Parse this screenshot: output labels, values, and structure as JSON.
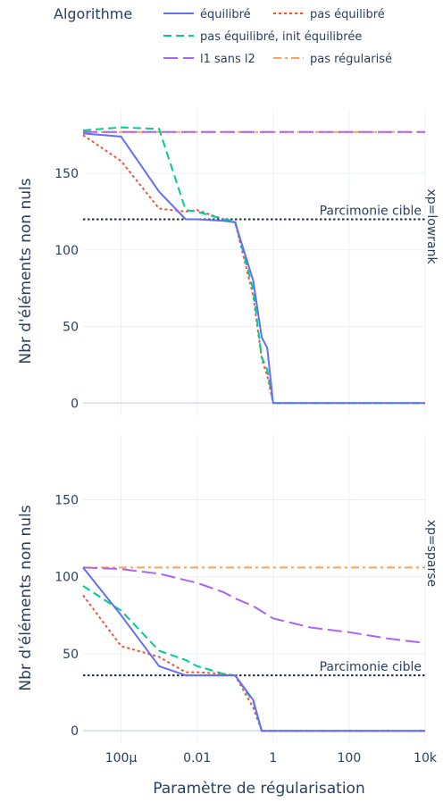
{
  "chart_data": {
    "type": "line",
    "legend": {
      "title": "Algorithme",
      "placement": "top",
      "entries": [
        {
          "name": "équilibré",
          "color": "#636efa",
          "dash": "solid"
        },
        {
          "name": "pas équilibré",
          "color": "#ef553b",
          "dash": "dot"
        },
        {
          "name": "pas équilibré, init équilibrée",
          "color": "#00cc96",
          "dash": "dash"
        },
        {
          "name": "l1 sans l2",
          "color": "#ab63fa",
          "dash": "longdash"
        },
        {
          "name": "pas régularisé",
          "color": "#ffa15a",
          "dash": "dashdot"
        }
      ]
    },
    "xlabel": "Paramètre de régularisation",
    "xscale": "log",
    "xlim": [
      1e-05,
      10000
    ],
    "xticks": [
      {
        "value": 0.0001,
        "label": "100µ"
      },
      {
        "value": 0.01,
        "label": "0.01"
      },
      {
        "value": 1,
        "label": "1"
      },
      {
        "value": 100,
        "label": "100"
      },
      {
        "value": 10000,
        "label": "10k"
      }
    ],
    "ylabel": "Nbr d'éléments non nuls",
    "ylim": [
      -8,
      192
    ],
    "yticks": [
      0,
      50,
      100,
      150
    ],
    "grid": true,
    "panels": [
      {
        "facet_label": "xp=lowrank",
        "target": {
          "value": 120,
          "label": "Parcimonie cible"
        },
        "series": [
          {
            "name": "équilibré",
            "x": [
              1e-05,
              0.0001,
              0.001,
              0.005,
              0.01,
              0.05,
              0.1,
              0.3,
              0.5,
              0.7,
              1,
              10,
              100,
              1000,
              10000
            ],
            "y": [
              176,
              174,
              138,
              120,
              120,
              119,
              118,
              80,
              43,
              36,
              0,
              0,
              0,
              0,
              0
            ]
          },
          {
            "name": "pas équilibré",
            "x": [
              1e-05,
              0.0001,
              0.001,
              0.005,
              0.01,
              0.05,
              0.1,
              0.3,
              0.5,
              0.7,
              1,
              10,
              100,
              1000,
              10000
            ],
            "y": [
              175,
              158,
              127,
              125,
              126,
              120,
              118,
              70,
              29,
              18,
              0,
              0,
              0,
              0,
              0
            ]
          },
          {
            "name": "pas équilibré, init équilibrée",
            "x": [
              1e-05,
              0.0001,
              0.001,
              0.005,
              0.01,
              0.05,
              0.1,
              0.3,
              0.5,
              0.7,
              1,
              10,
              100,
              1000,
              10000
            ],
            "y": [
              178,
              180,
              179,
              126,
              125,
              120,
              119,
              74,
              30,
              22,
              0,
              0,
              0,
              0,
              0
            ]
          },
          {
            "name": "l1 sans l2",
            "x": [
              1e-05,
              10000
            ],
            "y": [
              177,
              177
            ]
          },
          {
            "name": "pas régularisé",
            "x": [
              1e-05,
              10000
            ],
            "y": [
              177,
              177
            ]
          }
        ]
      },
      {
        "facet_label": "xp=sparse",
        "target": {
          "value": 36,
          "label": "Parcimonie cible"
        },
        "series": [
          {
            "name": "équilibré",
            "x": [
              1e-05,
              0.0001,
              0.001,
              0.005,
              0.01,
              0.05,
              0.1,
              0.3,
              0.5,
              0.7,
              1,
              10,
              100,
              1000,
              10000
            ],
            "y": [
              106,
              75,
              42,
              36,
              36,
              36,
              36,
              20,
              0,
              0,
              0,
              0,
              0,
              0,
              0
            ]
          },
          {
            "name": "pas équilibré",
            "x": [
              1e-05,
              0.0001,
              0.001,
              0.005,
              0.01,
              0.05,
              0.1,
              0.3,
              0.5,
              0.7,
              1,
              10,
              100,
              1000,
              10000
            ],
            "y": [
              88,
              55,
              48,
              38,
              38,
              37,
              36,
              15,
              0,
              0,
              0,
              0,
              0,
              0,
              0
            ]
          },
          {
            "name": "pas équilibré, init équilibrée",
            "x": [
              1e-05,
              0.0001,
              0.001,
              0.005,
              0.01,
              0.05,
              0.1,
              0.3,
              0.5,
              0.7,
              1,
              10,
              100,
              1000,
              10000
            ],
            "y": [
              94,
              78,
              52,
              46,
              42,
              37,
              36,
              19,
              0,
              0,
              0,
              0,
              0,
              0,
              0
            ]
          },
          {
            "name": "l1 sans l2",
            "x": [
              1e-05,
              0.0001,
              0.001,
              0.01,
              0.05,
              0.1,
              0.3,
              1,
              10,
              100,
              1000,
              10000
            ],
            "y": [
              106,
              105,
              102,
              96,
              90,
              86,
              81,
              73,
              67,
              64,
              60,
              57
            ]
          },
          {
            "name": "pas régularisé",
            "x": [
              1e-05,
              10000
            ],
            "y": [
              106,
              106
            ]
          }
        ]
      }
    ]
  }
}
